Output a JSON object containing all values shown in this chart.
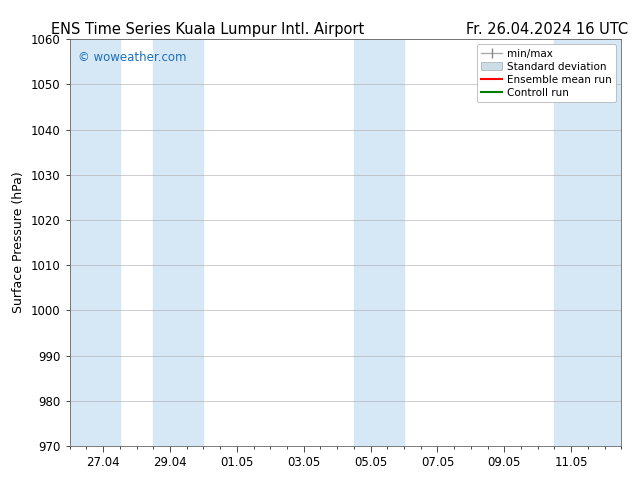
{
  "title_left": "ENS Time Series Kuala Lumpur Intl. Airport",
  "title_right": "Fr. 26.04.2024 16 UTC",
  "ylabel": "Surface Pressure (hPa)",
  "ylim": [
    970,
    1060
  ],
  "yticks": [
    970,
    980,
    990,
    1000,
    1010,
    1020,
    1030,
    1040,
    1050,
    1060
  ],
  "xtick_labels": [
    "27.04",
    "29.04",
    "01.05",
    "03.05",
    "05.05",
    "07.05",
    "09.05",
    "11.05"
  ],
  "xtick_positions": [
    1,
    3,
    5,
    7,
    9,
    11,
    13,
    15
  ],
  "xlim_start": 0,
  "xlim_end": 16.5,
  "shaded_bands": [
    {
      "xstart": 0.0,
      "xend": 1.5,
      "color": "#d6e8f5"
    },
    {
      "xstart": 2.5,
      "xend": 4.0,
      "color": "#d6e8f5"
    },
    {
      "xstart": 8.5,
      "xend": 10.0,
      "color": "#d6e8f5"
    },
    {
      "xstart": 14.5,
      "xend": 16.5,
      "color": "#d6e8f5"
    }
  ],
  "watermark": "© woweather.com",
  "watermark_color": "#1a6fbf",
  "bg_color": "#ffffff",
  "plot_bg_color": "#ffffff",
  "grid_color": "#aaaaaa",
  "title_fontsize": 10.5,
  "axis_label_fontsize": 9,
  "tick_fontsize": 8.5,
  "legend_fontsize": 7.5
}
